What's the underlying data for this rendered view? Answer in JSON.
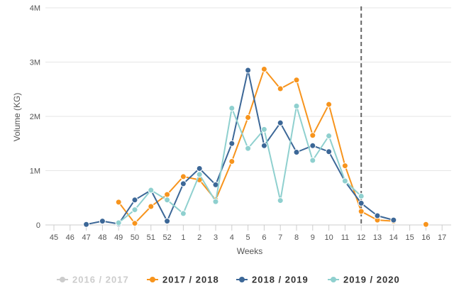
{
  "chart_data": {
    "type": "line",
    "title": "",
    "xlabel": "Weeks",
    "ylabel": "Volume (KG)",
    "categories": [
      "45",
      "46",
      "47",
      "48",
      "49",
      "50",
      "51",
      "52",
      "1",
      "2",
      "3",
      "4",
      "5",
      "6",
      "7",
      "8",
      "9",
      "10",
      "11",
      "12",
      "13",
      "14",
      "15",
      "16",
      "17"
    ],
    "y_ticks": [
      {
        "value": 0,
        "label": "0"
      },
      {
        "value": 1000000,
        "label": "1M"
      },
      {
        "value": 2000000,
        "label": "2M"
      },
      {
        "value": 3000000,
        "label": "3M"
      },
      {
        "value": 4000000,
        "label": "4M"
      }
    ],
    "ylim": [
      0,
      4000000
    ],
    "grid": "horizontal",
    "reference_line": {
      "category": "12",
      "style": "dashed",
      "color": "#666666"
    },
    "legend_position": "bottom",
    "series": [
      {
        "name": "2016 / 2017",
        "color": "#cccccc",
        "hidden": true,
        "values": [
          null,
          null,
          null,
          null,
          null,
          null,
          null,
          null,
          null,
          null,
          null,
          null,
          null,
          null,
          null,
          null,
          null,
          null,
          null,
          null,
          null,
          null,
          null,
          null,
          null
        ]
      },
      {
        "name": "2017 / 2018",
        "color": "#f7941d",
        "values": [
          null,
          null,
          null,
          null,
          420000,
          30000,
          340000,
          560000,
          890000,
          830000,
          460000,
          1170000,
          1980000,
          2870000,
          2510000,
          2670000,
          1650000,
          2220000,
          1090000,
          250000,
          90000,
          70000,
          null,
          10000,
          null
        ]
      },
      {
        "name": "2018 / 2019",
        "color": "#3c6797",
        "values": [
          null,
          null,
          10000,
          70000,
          20000,
          460000,
          640000,
          70000,
          760000,
          1040000,
          740000,
          1500000,
          2850000,
          1460000,
          1880000,
          1340000,
          1460000,
          1350000,
          800000,
          400000,
          170000,
          90000,
          null,
          null,
          null
        ]
      },
      {
        "name": "2019 / 2020",
        "color": "#8fd0cf",
        "values": [
          null,
          null,
          null,
          null,
          40000,
          280000,
          640000,
          460000,
          210000,
          930000,
          430000,
          2150000,
          1410000,
          1760000,
          450000,
          2190000,
          1190000,
          1640000,
          810000,
          530000,
          null,
          null,
          null,
          null,
          null
        ]
      }
    ]
  }
}
